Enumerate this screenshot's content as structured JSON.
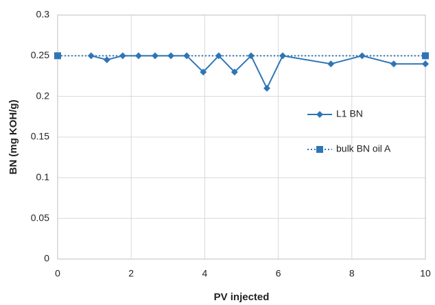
{
  "chart_data": {
    "type": "line",
    "xlabel": "PV injected",
    "ylabel": "BN (mg KOH/g)",
    "xlim": [
      0,
      10
    ],
    "xticks": [
      0,
      2,
      4,
      6,
      8,
      10
    ],
    "ylim": [
      0,
      0.3
    ],
    "yticks": [
      0,
      0.05,
      0.1,
      0.15,
      0.2,
      0.25,
      0.3
    ],
    "grid": true,
    "legend": "right",
    "series": [
      {
        "name": "L1 BN",
        "color": "#2e75b6",
        "marker": "diamond",
        "linestyle": "solid",
        "x": [
          0.91,
          1.34,
          1.77,
          2.2,
          2.65,
          3.08,
          3.51,
          3.96,
          4.38,
          4.81,
          5.26,
          5.69,
          6.12,
          7.43,
          8.28,
          9.14,
          10
        ],
        "values": [
          0.25,
          0.245,
          0.25,
          0.25,
          0.25,
          0.25,
          0.25,
          0.23,
          0.25,
          0.23,
          0.25,
          0.21,
          0.25,
          0.24,
          0.25,
          0.24,
          0.24
        ]
      },
      {
        "name": "bulk BN oil A",
        "color": "#2e75b6",
        "marker": "square",
        "linestyle": "dotted",
        "x": [
          0,
          10
        ],
        "values": [
          0.25,
          0.25
        ]
      }
    ]
  }
}
